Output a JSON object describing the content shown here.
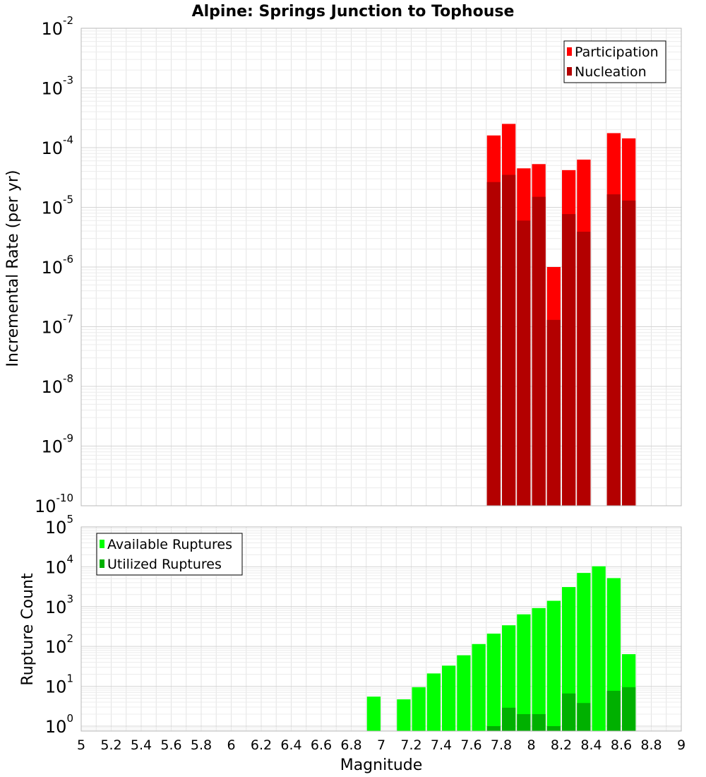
{
  "chart_data": {
    "type": "bar",
    "title": "Alpine: Springs Junction to Tophouse",
    "x_axis": {
      "label": "Magnitude",
      "range": [
        5,
        9
      ],
      "ticks": [
        5,
        5.2,
        5.4,
        5.6,
        5.8,
        6,
        6.2,
        6.4,
        6.6,
        6.8,
        7,
        7.2,
        7.4,
        7.6,
        7.8,
        8,
        8.2,
        8.4,
        8.6,
        8.8,
        9
      ],
      "tick_labels": [
        "5",
        "5.2",
        "5.4",
        "5.6",
        "5.8",
        "6",
        "6.2",
        "6.4",
        "6.6",
        "6.8",
        "7",
        "7.2",
        "7.4",
        "7.6",
        "7.8",
        "8",
        "8.2",
        "8.4",
        "8.6",
        "8.8",
        "9"
      ],
      "bin_width": 0.1
    },
    "grid": true,
    "panels": [
      {
        "name": "rate",
        "ylabel": "Incremental Rate (per yr)",
        "yscale": "log",
        "ylim": [
          1e-10,
          0.01
        ],
        "y_tick_exponents": [
          -10,
          -9,
          -8,
          -7,
          -6,
          -5,
          -4,
          -3,
          -2
        ],
        "legend_position": "top-right",
        "series": [
          {
            "name": "Participation",
            "color": "#ff0000",
            "x": [
              7.75,
              7.85,
              7.95,
              8.05,
              8.15,
              8.25,
              8.35,
              8.55,
              8.65
            ],
            "values": [
              0.00016,
              0.00025,
              4.5e-05,
              5.3e-05,
              1e-06,
              4.2e-05,
              6.3e-05,
              0.000175,
              0.000143
            ]
          },
          {
            "name": "Nucleation",
            "color": "#b30000",
            "x": [
              7.75,
              7.85,
              7.95,
              8.05,
              8.15,
              8.25,
              8.35,
              8.55,
              8.65
            ],
            "values": [
              2.65e-05,
              3.5e-05,
              6e-06,
              1.5e-05,
              1.3e-07,
              7.7e-06,
              3.9e-06,
              1.65e-05,
              1.3e-05
            ]
          }
        ]
      },
      {
        "name": "count",
        "ylabel": "Rupture Count",
        "yscale": "log",
        "ylim": [
          0.75,
          100000
        ],
        "y_tick_exponents": [
          0,
          1,
          2,
          3,
          4,
          5
        ],
        "legend_position": "top-left",
        "series": [
          {
            "name": "Available Ruptures",
            "color": "#00ff00",
            "x": [
              6.95,
              7.15,
              7.25,
              7.35,
              7.45,
              7.55,
              7.65,
              7.75,
              7.85,
              7.95,
              8.05,
              8.15,
              8.25,
              8.35,
              8.45,
              8.55,
              8.65
            ],
            "values": [
              5.5,
              4.7,
              9.5,
              21,
              33,
              60,
              115,
              210,
              340,
              640,
              920,
              1400,
              3100,
              7000,
              10300,
              5200,
              64
            ]
          },
          {
            "name": "Utilized Ruptures",
            "color": "#00b000",
            "x": [
              7.75,
              7.85,
              7.95,
              8.05,
              8.15,
              8.25,
              8.35,
              8.55,
              8.65
            ],
            "values": [
              1,
              2.9,
              2,
              2,
              1,
              6.6,
              3.8,
              7.7,
              9.5
            ]
          }
        ]
      }
    ]
  }
}
